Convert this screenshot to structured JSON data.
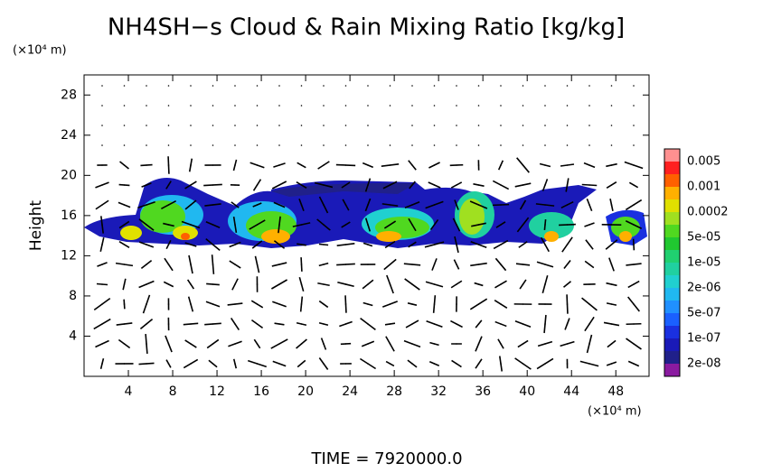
{
  "chart_data": {
    "type": "contour",
    "title": "NH4SH−s Cloud & Rain Mixing Ratio [kg/kg]",
    "y_unit": "(×10⁴ m)",
    "x_unit": "(×10⁴ m)",
    "ylabel": "Height",
    "xlim": [
      0,
      51
    ],
    "xticks": [
      4,
      8,
      12,
      16,
      20,
      24,
      28,
      32,
      36,
      40,
      44,
      48
    ],
    "ylim": [
      0,
      30
    ],
    "yticks": [
      4,
      8,
      12,
      16,
      20,
      24,
      28
    ],
    "colorbar": {
      "colors": [
        "#8a1aa0",
        "#20208a",
        "#1a1ab8",
        "#1a30e0",
        "#1a60ff",
        "#2090ff",
        "#20b8f0",
        "#20d0d0",
        "#20d0a0",
        "#20d070",
        "#20c830",
        "#50d820",
        "#a0e020",
        "#e0e000",
        "#ffb000",
        "#ff6000",
        "#ff2020",
        "#ff9090"
      ],
      "levels": [
        {
          "value": 2e-08,
          "label": "2e-08"
        },
        {
          "value": 1e-07,
          "label": "1e-07"
        },
        {
          "value": 5e-07,
          "label": "5e-07"
        },
        {
          "value": 2e-06,
          "label": "2e-06"
        },
        {
          "value": 1e-05,
          "label": "1e-05"
        },
        {
          "value": 5e-05,
          "label": "5e-05"
        },
        0.0002,
        0.001,
        0.005
      ]
    },
    "footer": "TIME  =  7920000.0"
  }
}
